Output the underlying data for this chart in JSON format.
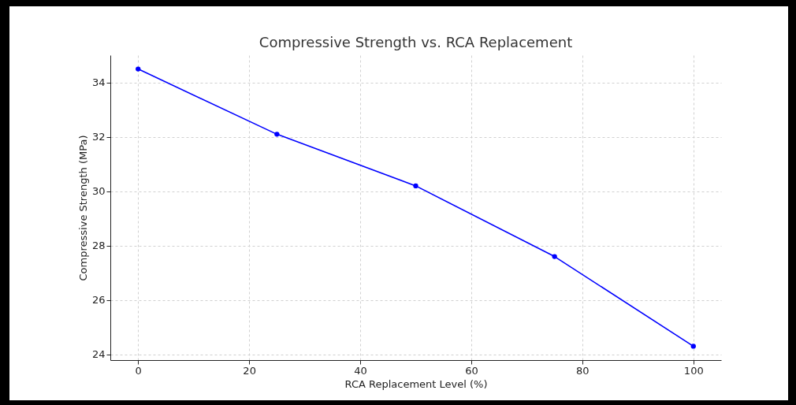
{
  "chart_data": {
    "type": "line",
    "title": "Compressive Strength vs. RCA Replacement",
    "xlabel": "RCA Replacement Level (%)",
    "ylabel": "Compressive Strength (MPa)",
    "x": [
      0,
      25,
      50,
      75,
      100
    ],
    "series": [
      {
        "color": "#0000ff",
        "values": [
          34.5,
          32.1,
          30.2,
          27.6,
          24.3
        ]
      }
    ],
    "xlim": [
      -5,
      105
    ],
    "xticks": [
      0,
      20,
      40,
      60,
      80,
      100
    ],
    "ylim": [
      23.79,
      35.01
    ],
    "yticks": [
      24,
      26,
      28,
      30,
      32,
      34
    ],
    "grid": true,
    "marker": "circle",
    "line_style": "solid"
  }
}
